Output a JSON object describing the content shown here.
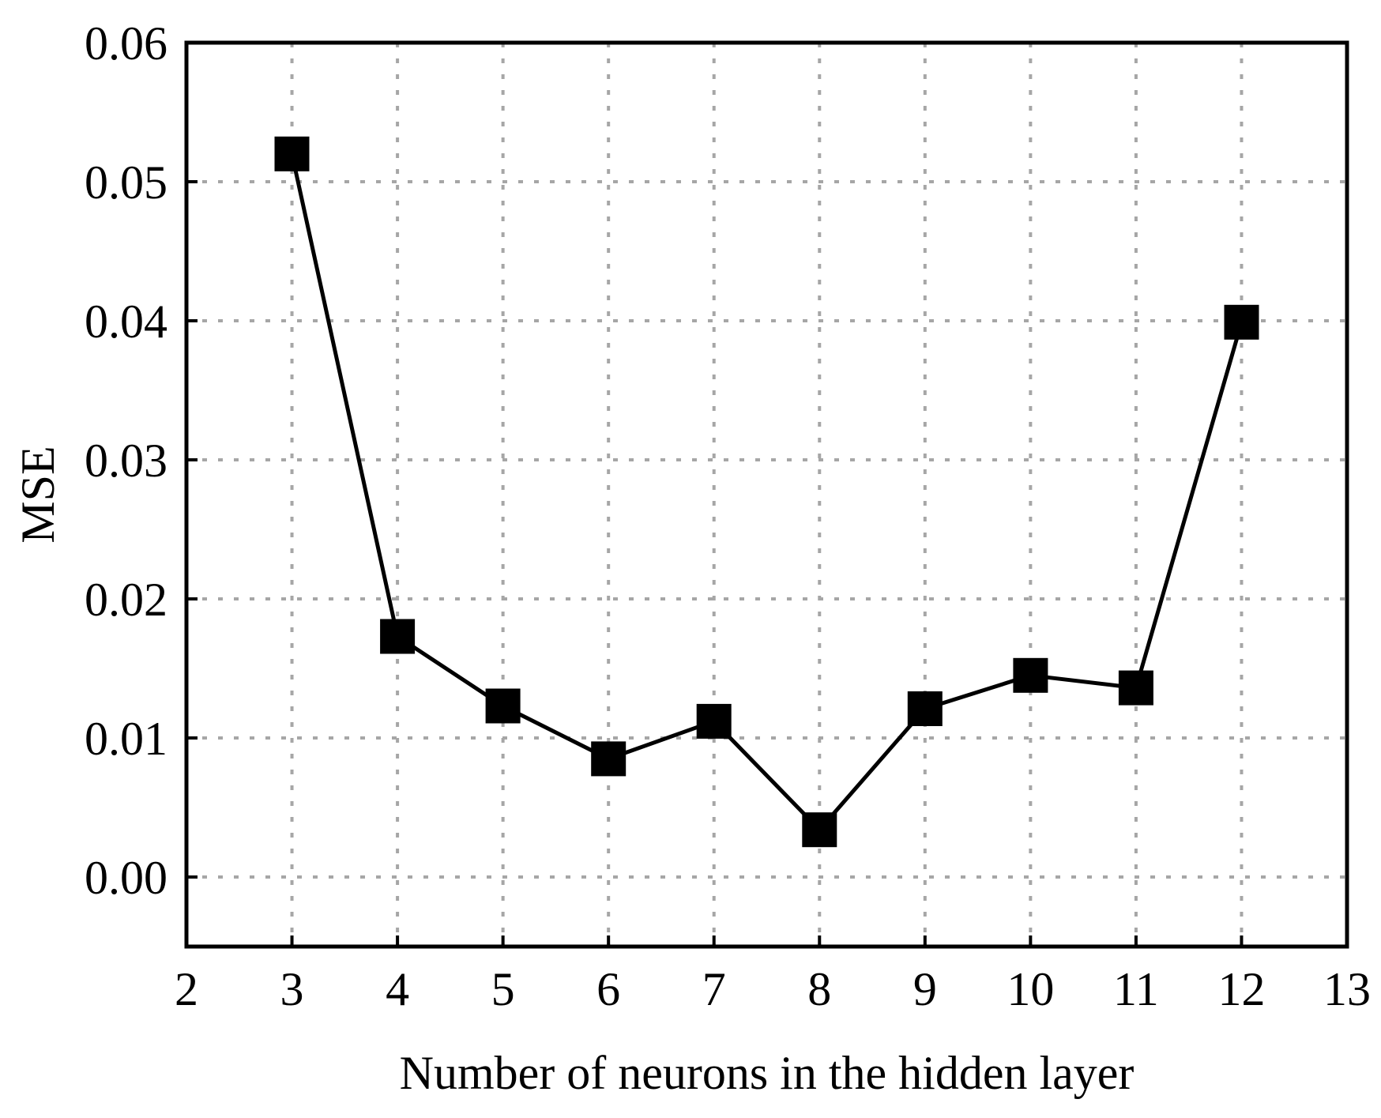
{
  "chart_data": {
    "type": "line",
    "title": "",
    "xlabel": "Number of neurons in the hidden layer",
    "ylabel": "MSE",
    "xlim": [
      2,
      13
    ],
    "ylim": [
      -0.005,
      0.06
    ],
    "xticks": [
      2,
      3,
      4,
      5,
      6,
      7,
      8,
      9,
      10,
      11,
      12,
      13
    ],
    "xtick_labels": [
      "2",
      "3",
      "4",
      "5",
      "6",
      "7",
      "8",
      "9",
      "10",
      "11",
      "12",
      "13"
    ],
    "yticks": [
      0.0,
      0.01,
      0.02,
      0.03,
      0.04,
      0.05,
      0.06
    ],
    "ytick_labels": [
      "0.00",
      "0.01",
      "0.02",
      "0.03",
      "0.04",
      "0.05",
      "0.06"
    ],
    "grid": true,
    "marker": "square",
    "colors": {
      "line": "#000000",
      "marker": "#000000",
      "grid": "#a6a6a6",
      "frame": "#000000"
    },
    "series": [
      {
        "x": [
          3,
          4,
          5,
          6,
          7,
          8,
          9,
          10,
          11,
          12
        ],
        "values": [
          0.052,
          0.0173,
          0.0123,
          0.0085,
          0.0112,
          0.0034,
          0.0121,
          0.0145,
          0.0136,
          0.0399
        ]
      }
    ]
  }
}
